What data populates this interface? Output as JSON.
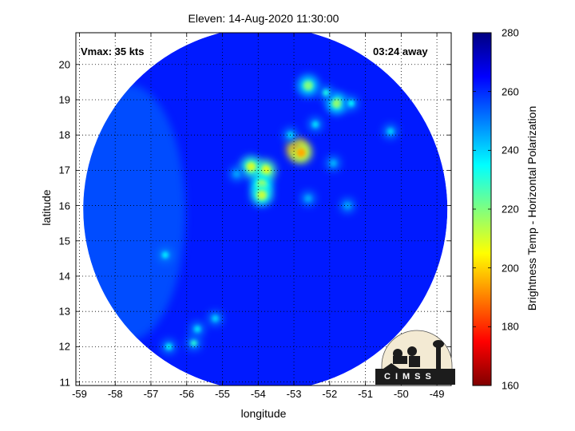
{
  "title": "Eleven: 14-Aug-2020 11:30:00",
  "annotations": {
    "vmax": "Vmax: 35 kts",
    "time_away": "03:24 away"
  },
  "logo_text": "CIMSS",
  "chart_data": {
    "type": "heatmap",
    "xlabel": "longitude",
    "ylabel": "latitude",
    "xlim": [
      -59.1,
      -48.6
    ],
    "ylim": [
      10.9,
      20.9
    ],
    "xticks": [
      "-59",
      "-58",
      "-57",
      "-56",
      "-55",
      "-54",
      "-53",
      "-52",
      "-51",
      "-50",
      "-49"
    ],
    "yticks": [
      "11",
      "12",
      "13",
      "14",
      "15",
      "16",
      "17",
      "18",
      "19",
      "20"
    ],
    "grid": true,
    "colorbar": {
      "label": "Brightness Temp - Horizontal Polarization",
      "min": 160,
      "max": 280,
      "ticks": [
        "160",
        "180",
        "200",
        "220",
        "240",
        "260",
        "280"
      ]
    },
    "swath_center": [
      -53.8,
      15.9
    ],
    "background_temp": 262,
    "features": [
      {
        "lon": -52.9,
        "lat": 17.6,
        "temp": 178
      },
      {
        "lon": -52.8,
        "lat": 17.5,
        "temp": 195
      },
      {
        "lon": -53.8,
        "lat": 17.0,
        "temp": 205
      },
      {
        "lon": -54.2,
        "lat": 17.1,
        "temp": 210
      },
      {
        "lon": -53.9,
        "lat": 16.6,
        "temp": 215
      },
      {
        "lon": -53.9,
        "lat": 16.3,
        "temp": 212
      },
      {
        "lon": -52.6,
        "lat": 19.4,
        "temp": 220
      },
      {
        "lon": -51.8,
        "lat": 18.9,
        "temp": 218
      },
      {
        "lon": -52.1,
        "lat": 19.2,
        "temp": 232
      },
      {
        "lon": -51.4,
        "lat": 18.9,
        "temp": 235
      },
      {
        "lon": -52.4,
        "lat": 18.3,
        "temp": 238
      },
      {
        "lon": -53.1,
        "lat": 18.0,
        "temp": 240
      },
      {
        "lon": -55.8,
        "lat": 12.1,
        "temp": 230
      },
      {
        "lon": -56.5,
        "lat": 12.0,
        "temp": 236
      },
      {
        "lon": -55.7,
        "lat": 12.5,
        "temp": 238
      },
      {
        "lon": -56.6,
        "lat": 14.6,
        "temp": 236
      },
      {
        "lon": -55.2,
        "lat": 12.8,
        "temp": 240
      },
      {
        "lon": -52.6,
        "lat": 16.2,
        "temp": 245
      },
      {
        "lon": -51.5,
        "lat": 16.0,
        "temp": 246
      },
      {
        "lon": -50.3,
        "lat": 18.1,
        "temp": 240
      },
      {
        "lon": -51.9,
        "lat": 17.2,
        "temp": 244
      },
      {
        "lon": -54.6,
        "lat": 16.9,
        "temp": 246
      }
    ]
  }
}
